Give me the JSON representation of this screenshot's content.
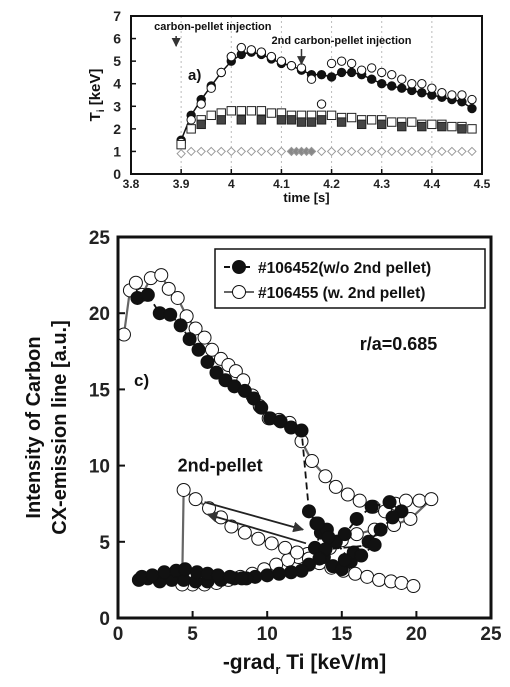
{
  "chart_data": [
    {
      "type": "scatter",
      "panel_label": "a)",
      "xlabel": "time [s]",
      "ylabel": "T",
      "ylabel_sub": "i",
      "ylabel_unit": " [keV]",
      "xlim": [
        3.8,
        4.5
      ],
      "ylim": [
        0,
        7
      ],
      "xticks": [
        3.8,
        3.9,
        4.0,
        4.1,
        4.2,
        4.3,
        4.4,
        4.5
      ],
      "xtick_labels": [
        "3.8",
        "3.9",
        "4",
        "4.1",
        "4.2",
        "4.3",
        "4.4",
        "4.5"
      ],
      "yticks": [
        0,
        1,
        2,
        3,
        4,
        5,
        6,
        7
      ],
      "ytick_labels": [
        "0",
        "1",
        "2",
        "3",
        "4",
        "5",
        "6",
        "7"
      ],
      "annotations": [
        {
          "text": "carbon-pellet injection",
          "x": 3.89,
          "arrow_to_y": 5.4
        },
        {
          "text": "2nd carbon-pellet injection",
          "x": 4.14,
          "arrow_to_y": 4.6
        }
      ],
      "series": [
        {
          "marker": "filled-circle",
          "x": [
            3.9,
            3.92,
            3.94,
            3.96,
            3.98,
            4.0,
            4.02,
            4.04,
            4.06,
            4.08,
            4.1,
            4.12,
            4.14,
            4.16,
            4.18,
            4.2,
            4.22,
            4.24,
            4.26,
            4.28,
            4.3,
            4.32,
            4.34,
            4.36,
            4.38,
            4.4,
            4.42,
            4.44,
            4.46,
            4.48
          ],
          "y": [
            1.5,
            2.6,
            3.3,
            3.9,
            4.5,
            5.0,
            5.3,
            5.4,
            5.3,
            5.1,
            4.9,
            4.8,
            4.6,
            4.4,
            4.4,
            4.3,
            4.5,
            4.5,
            4.4,
            4.2,
            4.0,
            3.9,
            3.8,
            3.7,
            3.6,
            3.5,
            3.4,
            3.3,
            3.2,
            2.9
          ]
        },
        {
          "marker": "open-circle",
          "x": [
            3.9,
            3.92,
            3.94,
            3.96,
            3.98,
            4.0,
            4.02,
            4.04,
            4.06,
            4.08,
            4.1,
            4.12,
            4.14,
            4.16,
            4.18,
            4.2,
            4.22,
            4.24,
            4.26,
            4.28,
            4.3,
            4.32,
            4.34,
            4.36,
            4.38,
            4.4,
            4.42,
            4.44,
            4.46,
            4.48
          ],
          "y": [
            1.4,
            2.4,
            3.1,
            3.8,
            4.5,
            5.2,
            5.6,
            5.5,
            5.4,
            5.2,
            5.0,
            4.8,
            4.7,
            4.2,
            3.1,
            4.9,
            5.0,
            4.9,
            4.6,
            4.7,
            4.5,
            4.4,
            4.2,
            4.0,
            4.0,
            3.8,
            3.6,
            3.5,
            3.5,
            3.3
          ]
        },
        {
          "marker": "open-square",
          "x": [
            3.9,
            3.92,
            3.94,
            3.96,
            3.98,
            4.0,
            4.02,
            4.04,
            4.06,
            4.08,
            4.1,
            4.12,
            4.14,
            4.16,
            4.18,
            4.2,
            4.22,
            4.24,
            4.26,
            4.28,
            4.3,
            4.32,
            4.34,
            4.36,
            4.38,
            4.4,
            4.42,
            4.44,
            4.46,
            4.48
          ],
          "y": [
            1.3,
            2.0,
            2.4,
            2.6,
            2.7,
            2.8,
            2.8,
            2.8,
            2.8,
            2.7,
            2.7,
            2.6,
            2.6,
            2.6,
            2.6,
            2.6,
            2.5,
            2.5,
            2.4,
            2.4,
            2.4,
            2.3,
            2.3,
            2.3,
            2.2,
            2.2,
            2.2,
            2.1,
            2.1,
            2.0
          ]
        },
        {
          "marker": "filled-square",
          "x": [
            3.94,
            3.98,
            4.02,
            4.06,
            4.1,
            4.12,
            4.14,
            4.16,
            4.18,
            4.22,
            4.26,
            4.3,
            4.34,
            4.38,
            4.42,
            4.46
          ],
          "y": [
            2.2,
            2.4,
            2.4,
            2.4,
            2.4,
            2.4,
            2.3,
            2.3,
            2.4,
            2.3,
            2.2,
            2.2,
            2.1,
            2.1,
            2.1,
            2.0
          ]
        },
        {
          "marker": "open-diamond",
          "x": [
            3.9,
            3.92,
            3.94,
            3.96,
            3.98,
            4.0,
            4.02,
            4.04,
            4.06,
            4.08,
            4.1,
            4.12,
            4.14,
            4.16,
            4.18,
            4.2,
            4.22,
            4.24,
            4.26,
            4.28,
            4.3,
            4.32,
            4.34,
            4.36,
            4.38,
            4.4,
            4.42,
            4.44,
            4.46,
            4.48
          ],
          "y": [
            0.9,
            1.0,
            1.0,
            1.0,
            1.0,
            1.0,
            1.0,
            1.0,
            1.0,
            1.0,
            1.0,
            1.0,
            1.0,
            1.0,
            1.0,
            1.0,
            1.0,
            1.0,
            1.0,
            1.0,
            1.0,
            1.0,
            1.0,
            1.0,
            1.0,
            1.0,
            1.0,
            1.0,
            1.0,
            1.0
          ]
        },
        {
          "marker": "filled-diamond",
          "x": [
            4.12,
            4.13,
            4.14,
            4.15,
            4.16
          ],
          "y": [
            1.0,
            1.0,
            1.0,
            1.0,
            1.0
          ]
        }
      ]
    },
    {
      "type": "scatter",
      "panel_label": "c)",
      "xlabel_pre": "-grad",
      "xlabel_sub": "r",
      "xlabel_post": " Ti [keV/m]",
      "ylabel_line1": "Intensity of Carbon",
      "ylabel_line2": "CX-emission line [a.u.]",
      "xlim": [
        0,
        25
      ],
      "ylim": [
        0,
        25
      ],
      "xticks": [
        0,
        5,
        10,
        15,
        20,
        25
      ],
      "xtick_labels": [
        "0",
        "5",
        "10",
        "15",
        "20",
        "25"
      ],
      "yticks": [
        0,
        5,
        10,
        15,
        20,
        25
      ],
      "ytick_labels": [
        "0",
        "5",
        "10",
        "15",
        "20",
        "25"
      ],
      "annotations": [
        {
          "text": "r/a=0.685",
          "x": 16.2,
          "y": 17.6
        },
        {
          "text": "2nd-pellet",
          "x": 4.0,
          "y": 9.6
        }
      ],
      "legend": {
        "position": "top-right",
        "entries": [
          "#106452(w/o 2nd pellet)",
          "#106455 (w. 2nd pellet)"
        ]
      },
      "series": [
        {
          "name": "#106452(w/o 2nd pellet)",
          "marker": "filled-circle",
          "line": "dashed",
          "x": [
            1.3,
            2.0,
            2.8,
            3.5,
            4.2,
            4.8,
            5.4,
            6.0,
            6.6,
            7.2,
            7.8,
            8.5,
            9.1,
            9.6,
            10.2,
            10.9,
            11.6,
            12.3,
            12.8,
            13.3,
            13.6,
            13.2,
            13.8,
            14.4,
            15.0,
            15.6,
            14.6,
            14.0,
            13.4,
            14.1,
            15.2,
            16.0,
            17.0,
            18.2,
            19.0,
            18.4,
            17.6,
            16.8,
            15.8,
            15.2,
            16.3,
            17.2,
            13.9,
            13.5,
            12.8,
            12.3,
            11.6,
            10.8,
            10.0,
            9.2,
            8.6,
            7.8,
            6.9,
            6.0,
            5.2,
            4.4,
            3.6,
            2.8,
            2.0,
            1.4,
            1.6,
            2.3,
            3.1,
            3.9,
            4.5,
            5.3,
            6.0,
            6.7,
            7.5,
            8.3
          ],
          "y": [
            21.0,
            21.2,
            20.0,
            19.9,
            19.2,
            18.3,
            17.6,
            16.8,
            16.1,
            15.6,
            15.2,
            14.9,
            14.4,
            13.8,
            13.1,
            12.9,
            12.5,
            12.3,
            7.0,
            6.2,
            5.6,
            4.6,
            4.0,
            3.4,
            3.2,
            3.7,
            5.0,
            5.8,
            6.2,
            5.3,
            5.5,
            6.5,
            7.3,
            7.6,
            7.0,
            6.6,
            5.8,
            5.0,
            4.3,
            3.8,
            4.1,
            4.8,
            4.5,
            3.9,
            3.5,
            3.1,
            3.0,
            2.9,
            2.8,
            2.7,
            2.6,
            2.6,
            2.5,
            2.4,
            2.4,
            2.5,
            2.5,
            2.4,
            2.6,
            2.5,
            2.7,
            2.8,
            3.0,
            3.1,
            3.2,
            3.0,
            2.9,
            2.8,
            2.7,
            2.6
          ]
        },
        {
          "name": "#106455 (w. 2nd pellet)",
          "marker": "open-circle",
          "line": "solid",
          "x": [
            0.4,
            0.8,
            1.2,
            1.6,
            2.2,
            2.9,
            3.4,
            4.0,
            4.6,
            5.2,
            5.8,
            6.3,
            6.9,
            7.4,
            7.9,
            8.4,
            9.0,
            9.5,
            10.1,
            10.8,
            11.5,
            12.3,
            13.0,
            13.9,
            14.6,
            15.4,
            16.2,
            17.1,
            17.9,
            18.6,
            19.3,
            20.2,
            21.0,
            19.6,
            18.5,
            17.2,
            16.0,
            15.0,
            14.2,
            13.4,
            12.7,
            12.1,
            11.4,
            10.6,
            9.8,
            9.0,
            8.2,
            7.4,
            6.6,
            5.8,
            5.0,
            4.3,
            4.4,
            5.2,
            6.1,
            6.9,
            7.6,
            8.5,
            9.4,
            10.3,
            11.2,
            12.0,
            12.8,
            13.5,
            14.3,
            15.1,
            15.9,
            16.7,
            17.5,
            18.3,
            19.0,
            19.8
          ],
          "y": [
            18.6,
            21.5,
            22.0,
            21.2,
            22.3,
            22.5,
            21.6,
            21.0,
            19.8,
            19.0,
            18.4,
            17.6,
            17.0,
            16.6,
            16.2,
            15.6,
            14.6,
            13.9,
            13.1,
            13.0,
            12.8,
            11.6,
            10.3,
            9.3,
            8.6,
            8.1,
            7.7,
            7.3,
            7.0,
            7.5,
            7.7,
            7.7,
            7.8,
            6.5,
            6.1,
            5.8,
            5.5,
            5.1,
            4.6,
            4.3,
            4.2,
            4.0,
            3.8,
            3.5,
            3.2,
            2.9,
            2.7,
            2.5,
            2.3,
            2.2,
            2.2,
            2.2,
            8.4,
            7.8,
            7.2,
            6.6,
            6.0,
            5.6,
            5.2,
            4.9,
            4.6,
            4.3,
            3.9,
            3.6,
            3.3,
            3.1,
            2.9,
            2.7,
            2.5,
            2.4,
            2.3,
            2.1
          ]
        }
      ]
    }
  ]
}
